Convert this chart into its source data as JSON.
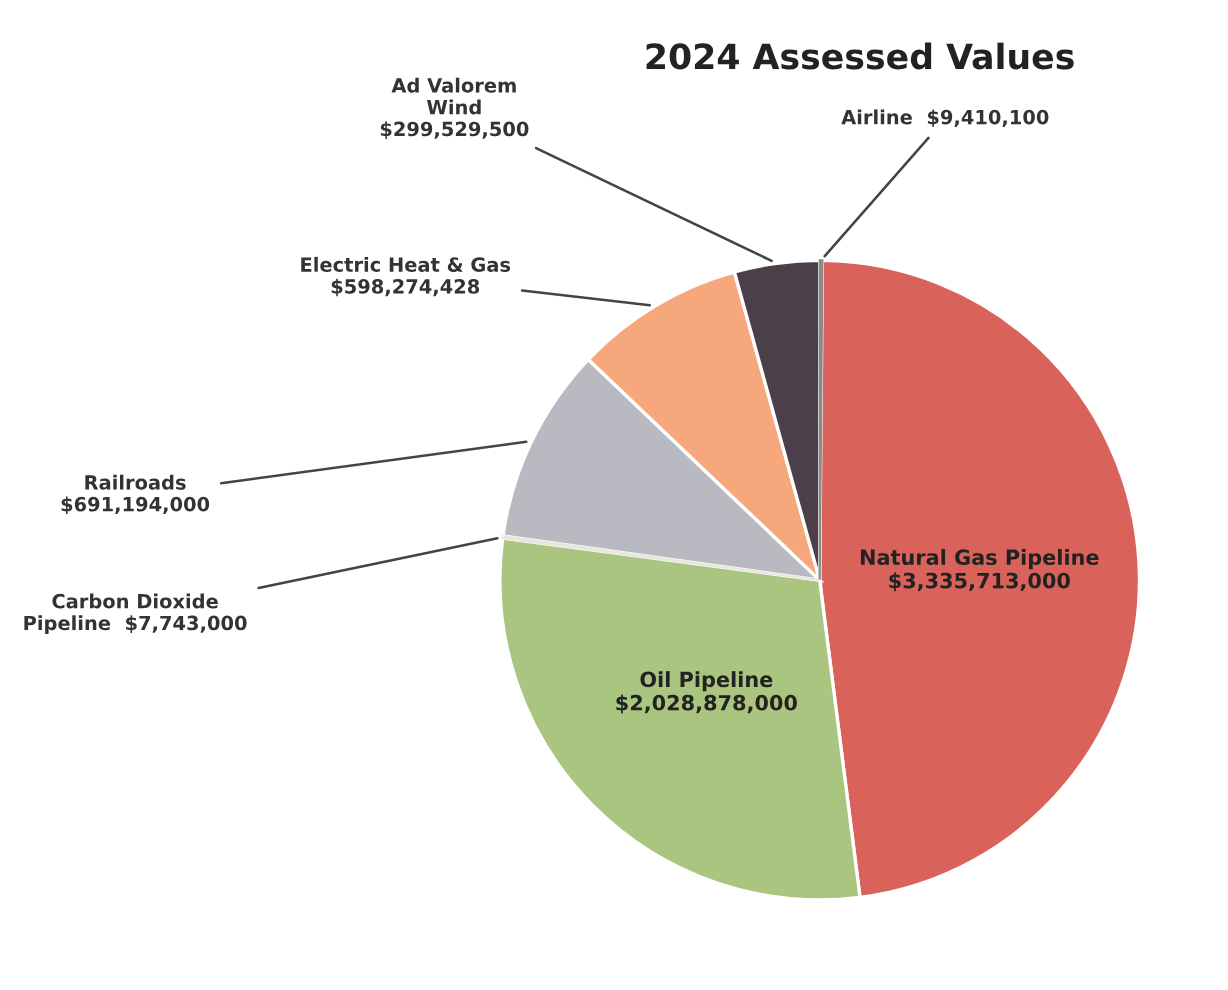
{
  "chart_data": {
    "type": "pie",
    "title": "2024 Assessed Values",
    "categories": [
      "Airline",
      "Natural Gas Pipeline",
      "Oil Pipeline",
      "Carbon Dioxide Pipeline",
      "Railroads",
      "Electric Heat & Gas",
      "Ad Valorem Wind"
    ],
    "values": [
      9410100,
      3335713000,
      2028878000,
      7743000,
      691194000,
      598274428,
      299529500
    ],
    "value_labels": [
      "$9,410,100",
      "$3,335,713,000",
      "$2,028,878,000",
      "$7,743,000",
      "$691,194,000",
      "$598,274,428",
      "$299,529,500"
    ],
    "colors": [
      "#8a8a8a",
      "#d9625b",
      "#aac57f",
      "#e8e8e0",
      "#b9b9c2",
      "#f6a77b",
      "#4b4049"
    ]
  }
}
